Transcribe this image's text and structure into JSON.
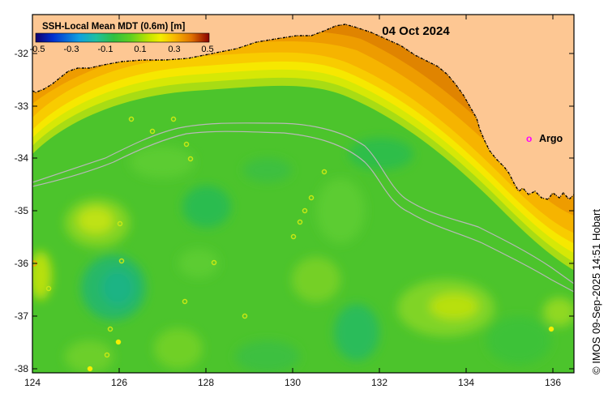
{
  "colorbar": {
    "title": "SSH-Local Mean MDT (0.6m) [m]",
    "ticks": [
      "-0.5",
      "-0.3",
      "-0.1",
      "0.1",
      "0.3",
      "0.5"
    ],
    "colors": [
      "#12006e",
      "#0026c8",
      "#0a8ae6",
      "#1ec3b4",
      "#2bc27a",
      "#3ec23a",
      "#5ed21c",
      "#b0e000",
      "#f4ee00",
      "#f8b800",
      "#e88000",
      "#c84000",
      "#8a0000"
    ]
  },
  "date": "04 Oct 2024",
  "argo": {
    "marker": "o",
    "label": "Argo",
    "color": "#ff00ff"
  },
  "credit": "© IMOS 09-Sep-2025 14:51 Hobart",
  "axes": {
    "y_ticks": [
      "-32",
      "-33",
      "-34",
      "-35",
      "-36",
      "-37",
      "-38"
    ],
    "x_ticks": [
      "124",
      "126",
      "128",
      "130",
      "132",
      "134",
      "136"
    ]
  },
  "colors": {
    "land": "#fdc793",
    "frame": "#000000",
    "contour": "#b8b8b8"
  }
}
